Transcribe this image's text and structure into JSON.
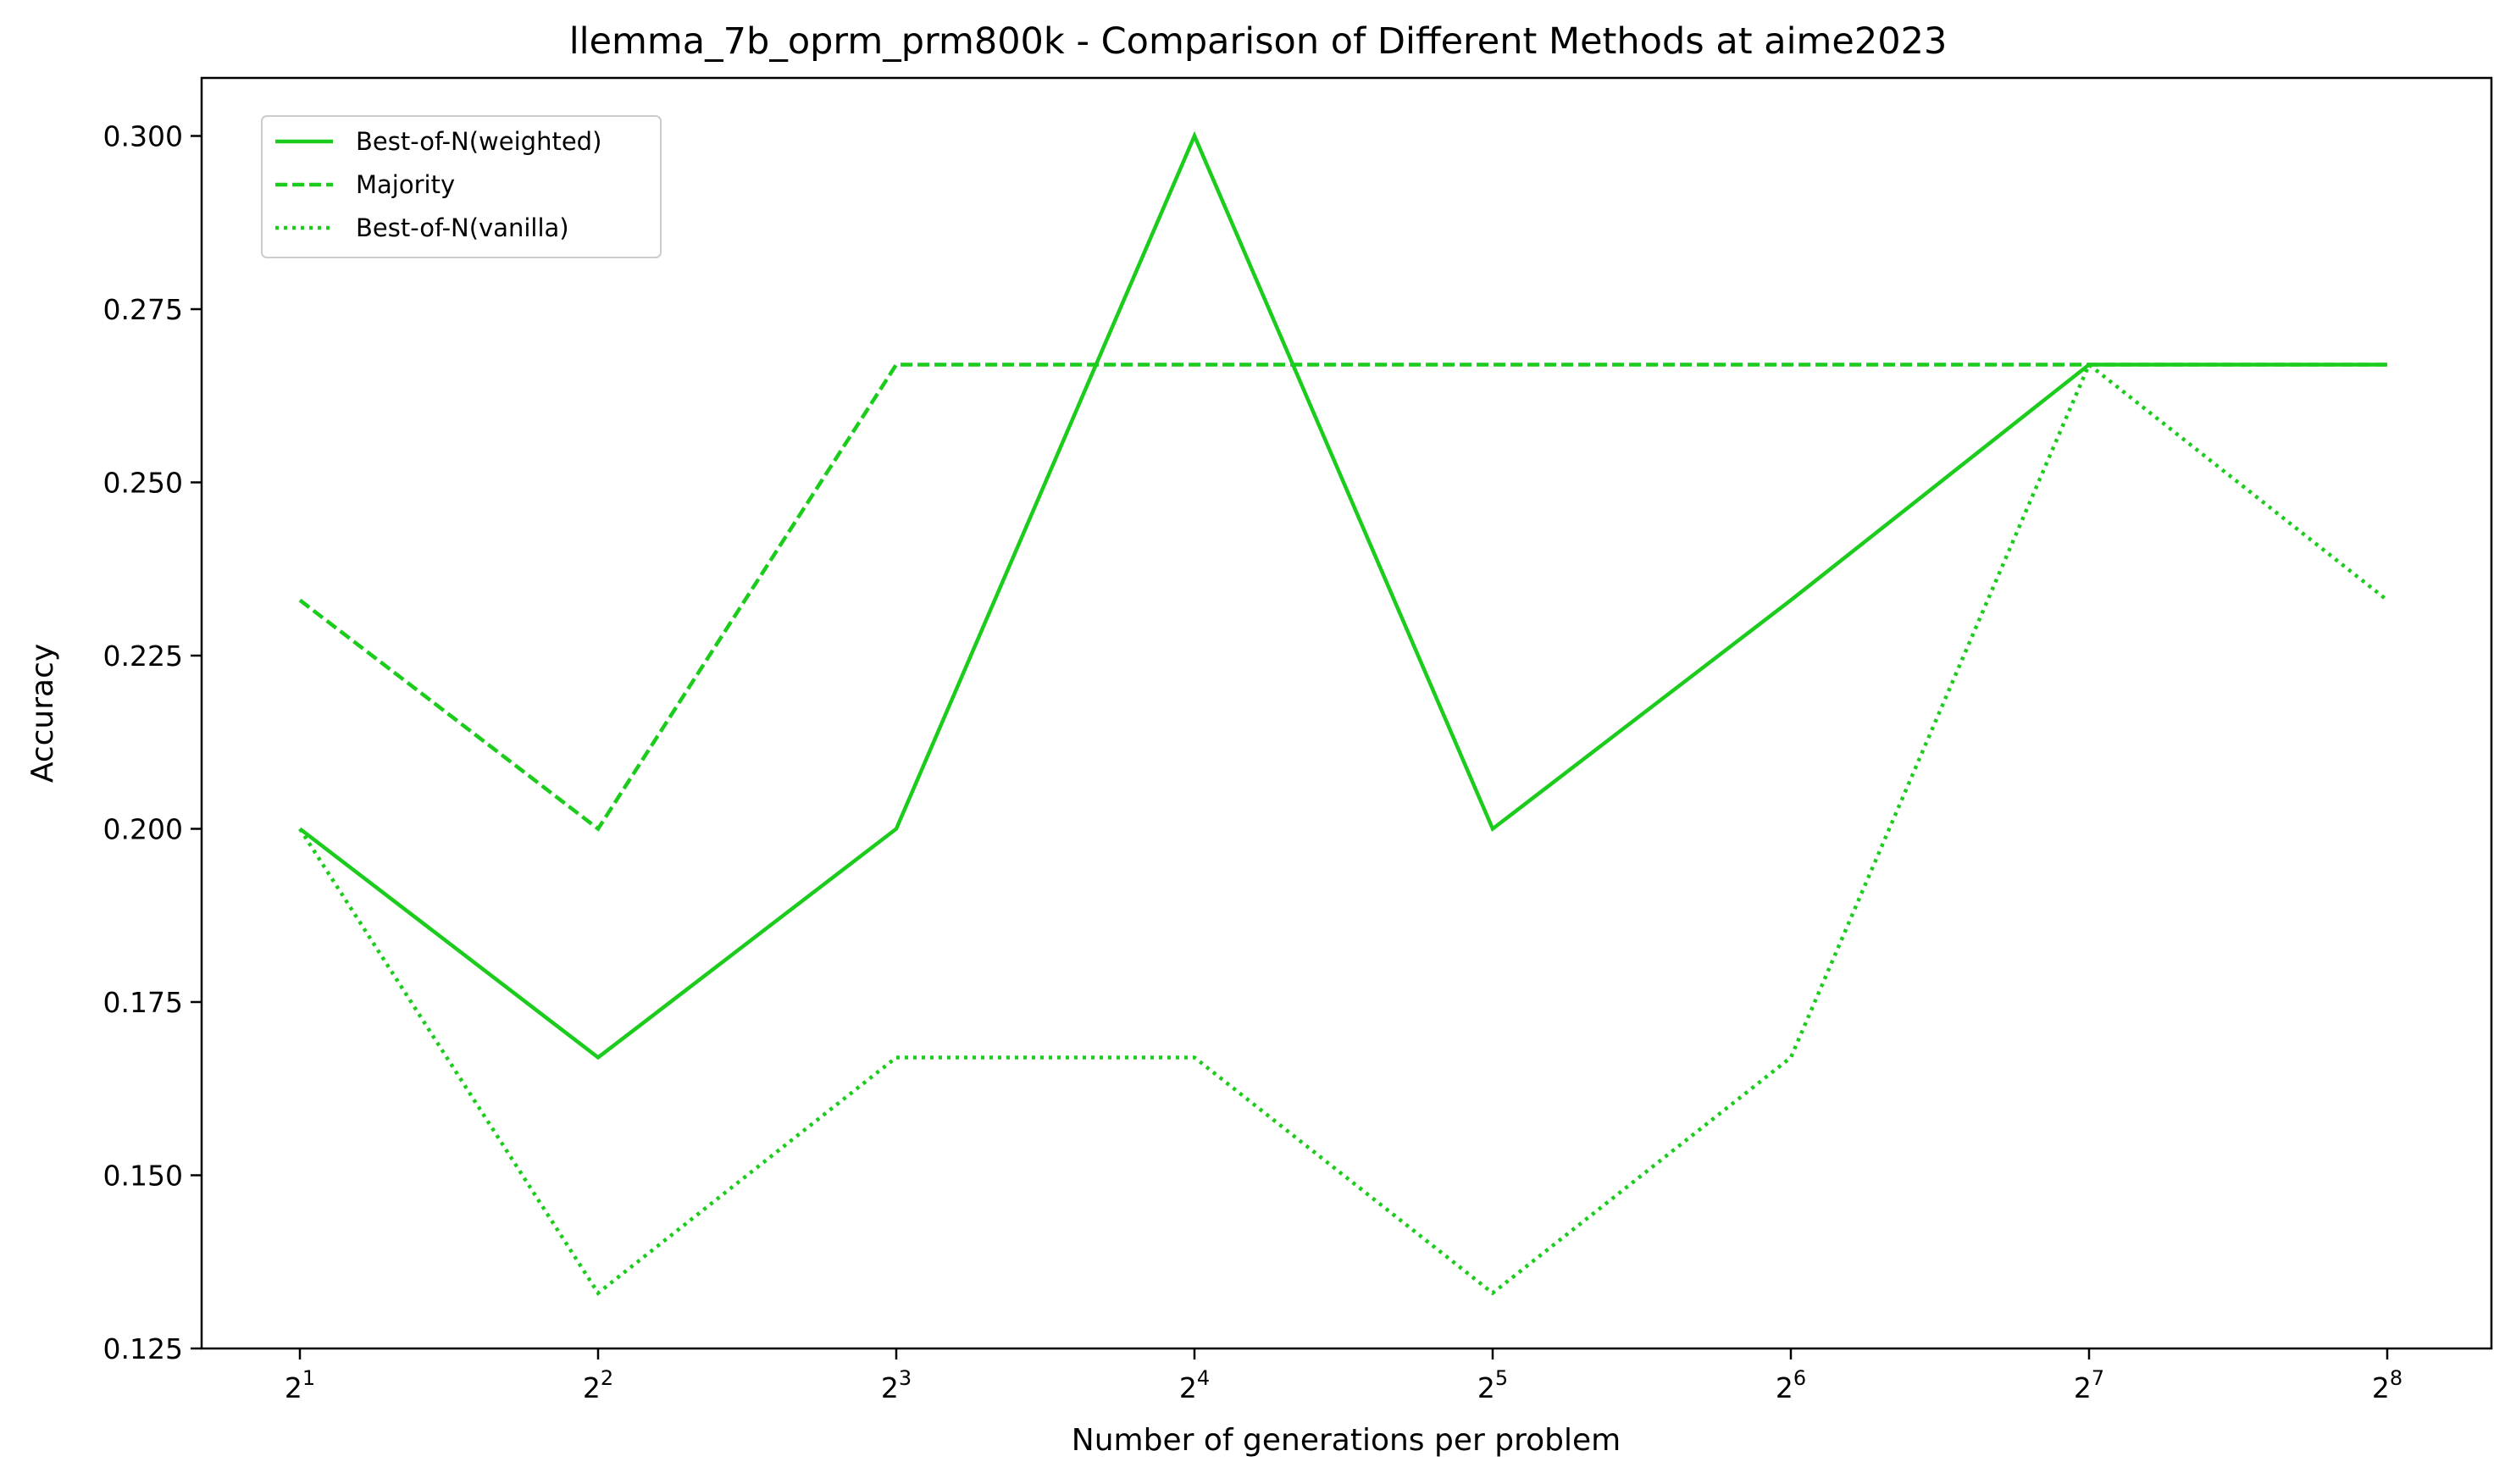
{
  "chart_data": {
    "type": "line",
    "title": "llemma_7b_oprm_prm800k - Comparison of Different Methods at aime2023",
    "xlabel": "Number of generations per problem",
    "ylabel": "Accuracy",
    "x_scale": "log2",
    "x": [
      2,
      4,
      8,
      16,
      32,
      64,
      128,
      256
    ],
    "x_tick_labels": [
      {
        "base": "2",
        "exp": "1"
      },
      {
        "base": "2",
        "exp": "2"
      },
      {
        "base": "2",
        "exp": "3"
      },
      {
        "base": "2",
        "exp": "4"
      },
      {
        "base": "2",
        "exp": "5"
      },
      {
        "base": "2",
        "exp": "6"
      },
      {
        "base": "2",
        "exp": "7"
      },
      {
        "base": "2",
        "exp": "8"
      }
    ],
    "ylim": [
      0.125,
      0.308
    ],
    "y_ticks": [
      "0.125",
      "0.150",
      "0.175",
      "0.200",
      "0.225",
      "0.250",
      "0.275",
      "0.300"
    ],
    "grid": false,
    "legend_position": "top-left",
    "series": [
      {
        "name": "Best-of-N(weighted)",
        "style": "solid",
        "color": "#1ccc1c",
        "values": [
          0.2,
          0.167,
          0.2,
          0.3,
          0.2,
          0.233,
          0.267,
          0.267
        ]
      },
      {
        "name": "Majority",
        "style": "dashed",
        "color": "#1ccc1c",
        "values": [
          0.233,
          0.2,
          0.267,
          0.267,
          0.267,
          0.267,
          0.267,
          0.267
        ]
      },
      {
        "name": "Best-of-N(vanilla)",
        "style": "dotted",
        "color": "#1ccc1c",
        "values": [
          0.2,
          0.133,
          0.167,
          0.167,
          0.133,
          0.167,
          0.267,
          0.233
        ]
      }
    ]
  }
}
